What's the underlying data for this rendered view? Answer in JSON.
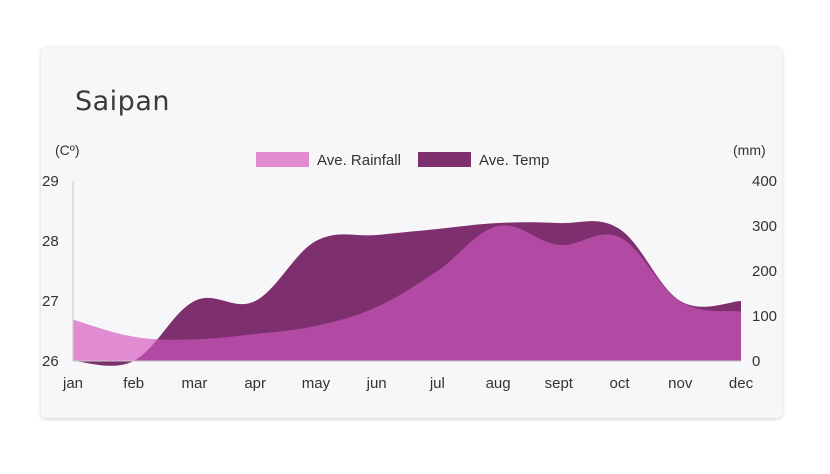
{
  "chart_data": {
    "type": "area",
    "title": "Saipan",
    "left_axis_unit": "(Cº)",
    "right_axis_unit": "(mm)",
    "categories": [
      "jan",
      "feb",
      "mar",
      "apr",
      "may",
      "jun",
      "jul",
      "aug",
      "sept",
      "oct",
      "nov",
      "dec"
    ],
    "left_axis": {
      "ticks": [
        26,
        27,
        28,
        29
      ],
      "range": [
        26,
        29
      ]
    },
    "right_axis": {
      "ticks": [
        0,
        100,
        200,
        300,
        400
      ],
      "range": [
        0,
        400
      ]
    },
    "legend_position": "top-center",
    "grid": false,
    "series": [
      {
        "name": "Ave. Rainfall",
        "axis": "right",
        "color": "#e08bd2",
        "values": [
          92,
          54,
          48,
          60,
          78,
          120,
          200,
          300,
          258,
          275,
          132,
          110
        ]
      },
      {
        "name": "Ave. Temp",
        "axis": "left",
        "color": "#7d2f6e",
        "values": [
          25.9,
          26.0,
          27.0,
          27.0,
          28.0,
          28.1,
          28.2,
          28.3,
          28.3,
          28.2,
          27.0,
          27.0
        ]
      }
    ],
    "overlap_color": "#b24aa4"
  }
}
